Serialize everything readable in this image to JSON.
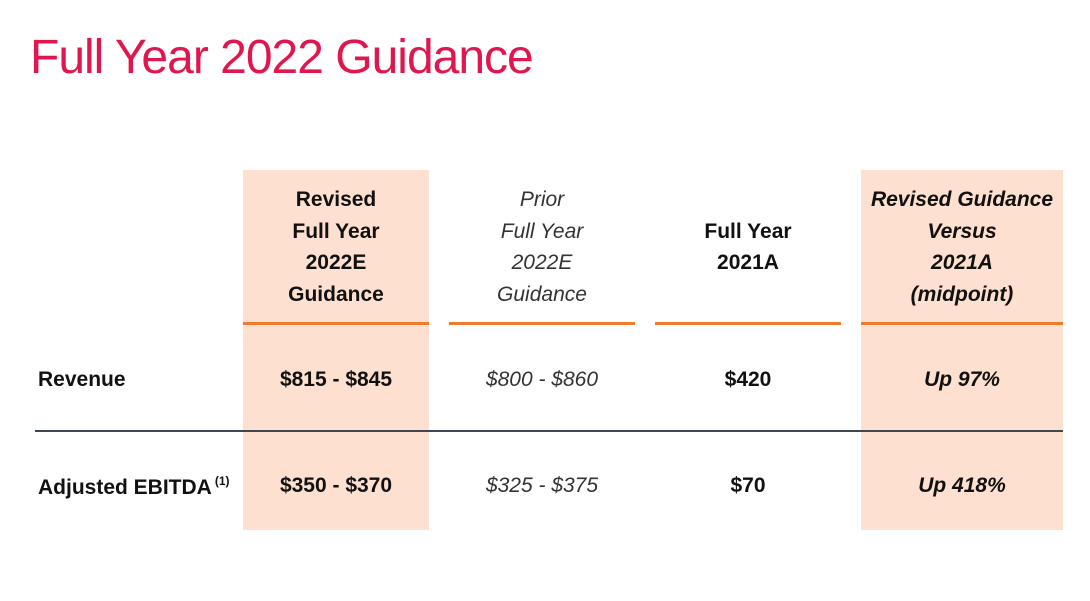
{
  "title": "Full Year 2022 Guidance",
  "columns": [
    {
      "lines": [
        "Revised",
        "Full Year",
        "2022E",
        "Guidance"
      ]
    },
    {
      "lines": [
        "Prior",
        "Full Year",
        "2022E",
        "Guidance"
      ]
    },
    {
      "lines": [
        "Full Year",
        "2021A"
      ]
    },
    {
      "lines": [
        "Revised Guidance",
        "Versus",
        "2021A",
        "(midpoint)"
      ]
    }
  ],
  "rows": [
    {
      "label": "Revenue",
      "footnote": "",
      "values": [
        "$815 - $845",
        "$800 - $860",
        "$420",
        "Up 97%"
      ]
    },
    {
      "label": "Adjusted EBITDA",
      "footnote": "(1)",
      "values": [
        "$350 - $370",
        "$325 - $375",
        "$70",
        "Up 418%"
      ]
    }
  ],
  "colors": {
    "title": "#e0174e",
    "highlight": "#fde0cf",
    "underline": "#ee7b2c",
    "divider": "#3e4750"
  }
}
